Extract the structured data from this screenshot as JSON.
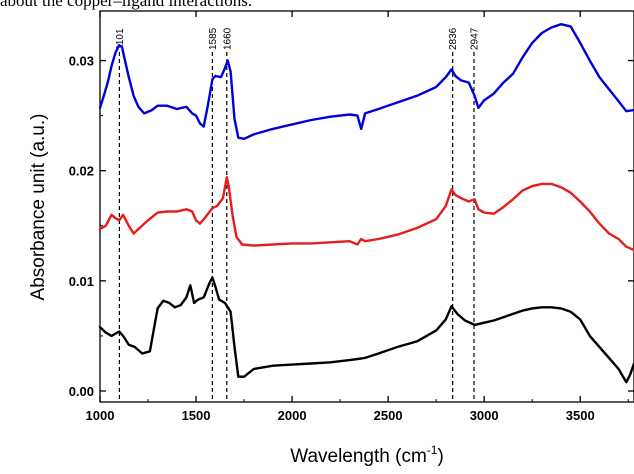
{
  "caption": "about the copper–ligand interactions.",
  "chart_data": {
    "type": "line",
    "xlabel_main": "Wavelength (cm",
    "xlabel_sup": "-1",
    "xlabel_close": ")",
    "ylabel": "Absorbance unit (a.u.)",
    "xlim": [
      1000,
      3780
    ],
    "ylim": [
      -0.001,
      0.0345
    ],
    "xticks": [
      1000,
      1500,
      2000,
      2500,
      3000,
      3500
    ],
    "xtick_labels": [
      "1000",
      "1500",
      "2000",
      "2500",
      "3000",
      "3500"
    ],
    "yticks": [
      0.0,
      0.01,
      0.02,
      0.03
    ],
    "ytick_labels": [
      "0.00",
      "0.01",
      "0.02",
      "0.03"
    ],
    "peak_lines": [
      {
        "x": 1101,
        "label": "1101"
      },
      {
        "x": 1585,
        "label": "1585"
      },
      {
        "x": 1660,
        "label": "1660"
      },
      {
        "x": 2836,
        "label": "2836"
      },
      {
        "x": 2947,
        "label": "2947"
      }
    ],
    "series": [
      {
        "color": "#0000dd",
        "x": [
          1000,
          1020,
          1040,
          1060,
          1080,
          1100,
          1115,
          1130,
          1150,
          1175,
          1200,
          1230,
          1270,
          1300,
          1350,
          1400,
          1450,
          1480,
          1500,
          1520,
          1540,
          1560,
          1585,
          1600,
          1630,
          1650,
          1665,
          1680,
          1700,
          1720,
          1750,
          1800,
          1900,
          2000,
          2100,
          2200,
          2300,
          2340,
          2360,
          2380,
          2450,
          2550,
          2650,
          2750,
          2800,
          2830,
          2850,
          2880,
          2920,
          2950,
          2970,
          3000,
          3050,
          3100,
          3150,
          3200,
          3250,
          3300,
          3350,
          3400,
          3450,
          3500,
          3550,
          3600,
          3650,
          3700,
          3740,
          3780
        ],
        "y": [
          0.0257,
          0.0268,
          0.028,
          0.0295,
          0.0307,
          0.0314,
          0.0312,
          0.03,
          0.0285,
          0.0268,
          0.0258,
          0.0252,
          0.0255,
          0.0259,
          0.0259,
          0.0256,
          0.0258,
          0.0252,
          0.025,
          0.0243,
          0.024,
          0.0258,
          0.0283,
          0.0286,
          0.0285,
          0.0293,
          0.03,
          0.029,
          0.0247,
          0.023,
          0.0229,
          0.0233,
          0.0238,
          0.0242,
          0.0246,
          0.0249,
          0.0251,
          0.025,
          0.0238,
          0.0252,
          0.0256,
          0.0262,
          0.0268,
          0.0276,
          0.0285,
          0.0292,
          0.0286,
          0.0282,
          0.028,
          0.0268,
          0.0257,
          0.0264,
          0.027,
          0.028,
          0.0288,
          0.0303,
          0.0316,
          0.0325,
          0.033,
          0.0333,
          0.0331,
          0.0316,
          0.03,
          0.0285,
          0.0274,
          0.0263,
          0.0254,
          0.0255
        ]
      },
      {
        "color": "#e81c1c",
        "x": [
          1000,
          1030,
          1060,
          1080,
          1100,
          1120,
          1150,
          1175,
          1200,
          1250,
          1300,
          1350,
          1400,
          1450,
          1480,
          1500,
          1520,
          1550,
          1585,
          1610,
          1640,
          1660,
          1670,
          1690,
          1710,
          1740,
          1800,
          1900,
          2000,
          2100,
          2200,
          2300,
          2340,
          2360,
          2380,
          2450,
          2550,
          2650,
          2750,
          2800,
          2830,
          2850,
          2880,
          2920,
          2950,
          2970,
          3000,
          3050,
          3100,
          3150,
          3200,
          3250,
          3300,
          3350,
          3400,
          3450,
          3500,
          3550,
          3600,
          3650,
          3700,
          3740,
          3780
        ],
        "y": [
          0.0147,
          0.015,
          0.016,
          0.0157,
          0.0155,
          0.016,
          0.015,
          0.0143,
          0.0147,
          0.0155,
          0.0162,
          0.0163,
          0.0163,
          0.0165,
          0.0163,
          0.0155,
          0.0152,
          0.0158,
          0.0166,
          0.0168,
          0.0175,
          0.0194,
          0.0186,
          0.016,
          0.014,
          0.0133,
          0.0132,
          0.0133,
          0.0134,
          0.0134,
          0.0135,
          0.0136,
          0.0133,
          0.0138,
          0.0136,
          0.0138,
          0.0142,
          0.0148,
          0.0156,
          0.0168,
          0.0183,
          0.0178,
          0.0175,
          0.0172,
          0.0174,
          0.0165,
          0.0162,
          0.0161,
          0.0167,
          0.0174,
          0.0182,
          0.0186,
          0.0188,
          0.0188,
          0.0185,
          0.018,
          0.0172,
          0.0163,
          0.0152,
          0.0143,
          0.0138,
          0.0131,
          0.0128
        ]
      },
      {
        "color": "#000000",
        "x": [
          1000,
          1030,
          1060,
          1080,
          1100,
          1120,
          1150,
          1180,
          1220,
          1260,
          1300,
          1330,
          1360,
          1390,
          1420,
          1450,
          1470,
          1490,
          1510,
          1540,
          1570,
          1585,
          1600,
          1620,
          1650,
          1680,
          1700,
          1720,
          1750,
          1800,
          1900,
          2000,
          2100,
          2200,
          2300,
          2340,
          2380,
          2450,
          2550,
          2650,
          2750,
          2800,
          2830,
          2860,
          2900,
          2950,
          3000,
          3050,
          3100,
          3150,
          3200,
          3250,
          3300,
          3350,
          3400,
          3450,
          3500,
          3550,
          3600,
          3650,
          3700,
          3740,
          3760,
          3780
        ],
        "y": [
          0.0058,
          0.0053,
          0.005,
          0.0052,
          0.0054,
          0.005,
          0.0042,
          0.004,
          0.0034,
          0.0036,
          0.0075,
          0.0082,
          0.008,
          0.0076,
          0.0078,
          0.0085,
          0.0096,
          0.008,
          0.0083,
          0.0085,
          0.0098,
          0.0103,
          0.0095,
          0.0083,
          0.008,
          0.0072,
          0.004,
          0.0013,
          0.0013,
          0.002,
          0.0023,
          0.0024,
          0.0025,
          0.0026,
          0.0028,
          0.0029,
          0.003,
          0.0034,
          0.004,
          0.0045,
          0.0055,
          0.0065,
          0.0077,
          0.007,
          0.0064,
          0.006,
          0.0062,
          0.0064,
          0.0067,
          0.007,
          0.0073,
          0.0075,
          0.0076,
          0.0076,
          0.0075,
          0.0072,
          0.0065,
          0.005,
          0.004,
          0.003,
          0.002,
          0.0008,
          0.0015,
          0.0025
        ]
      }
    ]
  }
}
